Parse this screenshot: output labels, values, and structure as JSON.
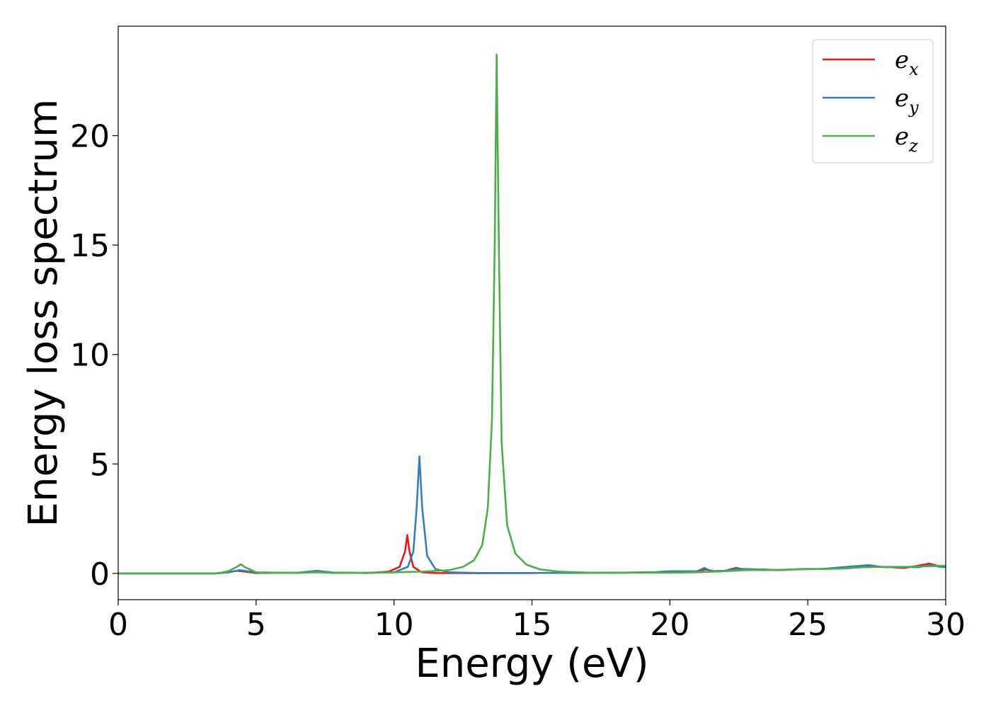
{
  "chart_data": {
    "type": "line",
    "xlabel": "Energy (eV)",
    "ylabel": "Energy loss spectrum",
    "xlim": [
      0,
      30
    ],
    "ylim": [
      -1.2,
      25
    ],
    "xticks": [
      0,
      5,
      10,
      15,
      20,
      25,
      30
    ],
    "yticks": [
      0,
      5,
      10,
      15,
      20
    ],
    "grid": false,
    "legend_position": "top-right",
    "series": [
      {
        "name": "e_x",
        "legend_base": "e",
        "legend_sub": "x",
        "color": "#e41a1c",
        "x": [
          0,
          3.5,
          4.0,
          4.3,
          4.6,
          5.0,
          6.5,
          7.2,
          7.8,
          9.0,
          9.8,
          10.2,
          10.4,
          10.48,
          10.56,
          10.7,
          11.0,
          11.5,
          13.0,
          15.0,
          18.0,
          19.5,
          20.0,
          21.0,
          21.3,
          21.6,
          22.0,
          22.4,
          22.8,
          23.3,
          24.0,
          24.8,
          25.5,
          26.2,
          27.2,
          27.8,
          28.5,
          29.0,
          29.4,
          29.7,
          30.0
        ],
        "y": [
          0,
          0,
          0.05,
          0.12,
          0.08,
          0.02,
          0.03,
          0.08,
          0.03,
          0.02,
          0.08,
          0.3,
          1.0,
          1.75,
          1.0,
          0.3,
          0.05,
          0.02,
          0.01,
          0.02,
          0.03,
          0.05,
          0.08,
          0.1,
          0.18,
          0.1,
          0.12,
          0.25,
          0.15,
          0.18,
          0.15,
          0.2,
          0.2,
          0.25,
          0.3,
          0.3,
          0.25,
          0.35,
          0.45,
          0.35,
          0.3
        ]
      },
      {
        "name": "e_y",
        "legend_base": "e",
        "legend_sub": "y",
        "color": "#377eb8",
        "x": [
          0,
          3.5,
          4.0,
          4.4,
          4.8,
          5.2,
          6.5,
          7.2,
          7.8,
          9.0,
          10.0,
          10.5,
          10.7,
          10.82,
          10.92,
          11.02,
          11.2,
          11.5,
          12.0,
          13.0,
          15.0,
          18.0,
          19.5,
          20.0,
          21.0,
          21.25,
          21.5,
          22.0,
          22.4,
          22.8,
          23.2,
          24.0,
          24.8,
          25.5,
          26.2,
          27.2,
          27.8,
          28.3,
          29.0,
          29.4,
          29.8,
          30.0
        ],
        "y": [
          0,
          0,
          0.05,
          0.15,
          0.08,
          0.02,
          0.03,
          0.12,
          0.04,
          0.02,
          0.05,
          0.3,
          1.0,
          3.0,
          5.35,
          3.0,
          0.8,
          0.2,
          0.05,
          0.02,
          0.02,
          0.03,
          0.06,
          0.1,
          0.1,
          0.25,
          0.1,
          0.12,
          0.2,
          0.2,
          0.18,
          0.15,
          0.2,
          0.2,
          0.28,
          0.38,
          0.28,
          0.3,
          0.28,
          0.38,
          0.3,
          0.28
        ]
      },
      {
        "name": "e_z",
        "legend_base": "e",
        "legend_sub": "z",
        "color": "#4daf4a",
        "x": [
          0,
          3.6,
          4.0,
          4.3,
          4.45,
          4.6,
          5.0,
          6.5,
          7.2,
          7.8,
          9.0,
          10.0,
          11.0,
          12.0,
          12.5,
          12.9,
          13.2,
          13.4,
          13.55,
          13.65,
          13.72,
          13.8,
          13.9,
          14.1,
          14.4,
          14.8,
          15.3,
          16.0,
          17.0,
          18.0,
          19.0,
          20.0,
          21.0,
          22.0,
          22.8,
          23.5,
          24.5,
          25.5,
          26.3,
          27.0,
          27.8,
          28.5,
          29.2,
          30.0
        ],
        "y": [
          0,
          0,
          0.1,
          0.3,
          0.42,
          0.28,
          0.05,
          0.02,
          0.05,
          0.02,
          0.03,
          0.05,
          0.08,
          0.15,
          0.3,
          0.6,
          1.3,
          3.0,
          7.0,
          15.0,
          23.7,
          15.0,
          6.0,
          2.2,
          0.9,
          0.4,
          0.18,
          0.08,
          0.04,
          0.03,
          0.03,
          0.03,
          0.05,
          0.1,
          0.15,
          0.15,
          0.18,
          0.2,
          0.22,
          0.28,
          0.3,
          0.3,
          0.32,
          0.35
        ]
      }
    ]
  }
}
